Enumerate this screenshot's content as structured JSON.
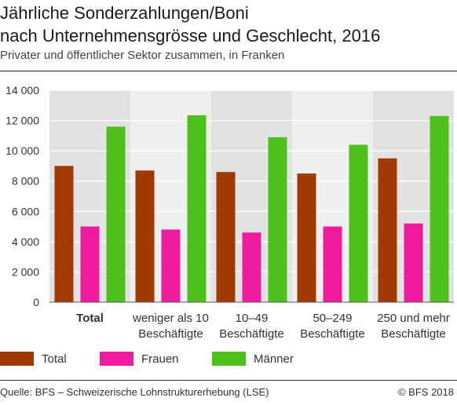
{
  "chart_data": {
    "type": "bar",
    "title_line1": "Jährliche Sonderzahlungen/Boni",
    "title_line2": "nach Unternehmensgrösse und Geschlecht, 2016",
    "subtitle": "Privater und öffentlicher Sektor zusammen, in Franken",
    "categories": [
      {
        "line1": "Total",
        "line2": "",
        "bold": true
      },
      {
        "line1": "weniger als 10",
        "line2": "Beschäftigte",
        "bold": false
      },
      {
        "line1": "10–49",
        "line2": "Beschäftigte",
        "bold": false
      },
      {
        "line1": "50–249",
        "line2": "Beschäftigte",
        "bold": false
      },
      {
        "line1": "250 und mehr",
        "line2": "Beschäftigte",
        "bold": false
      }
    ],
    "series": [
      {
        "name": "Total",
        "color": "#a03a00",
        "values": [
          9000,
          8700,
          8600,
          8500,
          9500
        ]
      },
      {
        "name": "Frauen",
        "color": "#ee1b9c",
        "values": [
          5000,
          4800,
          4600,
          5000,
          5200
        ]
      },
      {
        "name": "Männer",
        "color": "#4ec11c",
        "values": [
          11600,
          12350,
          10900,
          10400,
          12300
        ]
      }
    ],
    "ylim": [
      0,
      14000
    ],
    "yticks": [
      0,
      2000,
      4000,
      6000,
      8000,
      10000,
      12000,
      14000
    ],
    "ytick_labels": [
      "0",
      "2 000",
      "4 000",
      "6 000",
      "8 000",
      "10 000",
      "12 000",
      "14 000"
    ],
    "grid": true,
    "legend_position": "bottom"
  },
  "footer": {
    "source": "Quelle: BFS – Schweizerische Lohnstrukturerhebung (LSE)",
    "copyright": "© BFS 2018"
  }
}
